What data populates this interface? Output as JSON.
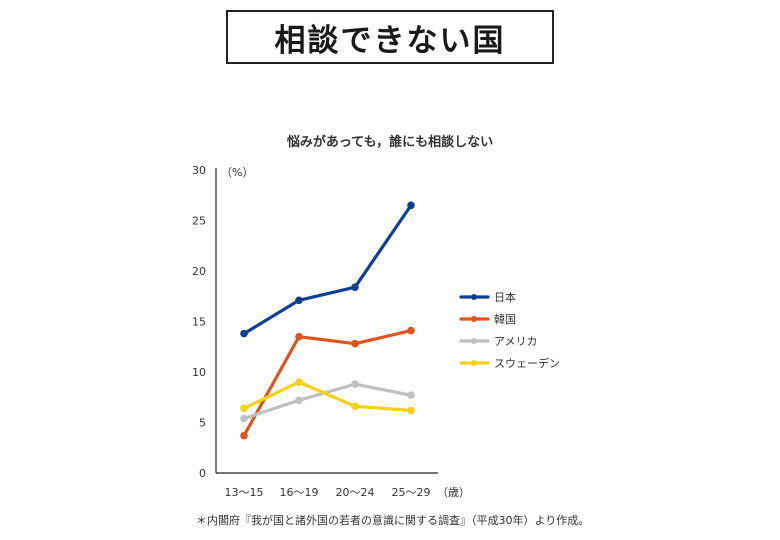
{
  "page_title": "相談できない国",
  "chart_data": {
    "type": "line",
    "title": "悩みがあっても，誰にも相談しない",
    "categories": [
      "13〜15",
      "16〜19",
      "20〜24",
      "25〜29"
    ],
    "x_unit": "（歳）",
    "y_unit": "（%）",
    "ylim": [
      0,
      30
    ],
    "yticks": [
      0,
      5,
      10,
      15,
      20,
      25,
      30
    ],
    "grid": false,
    "legend_position": "right",
    "series": [
      {
        "name": "日本",
        "color": "#0d3f94",
        "values": [
          13.8,
          17.1,
          18.4,
          26.5
        ]
      },
      {
        "name": "韓国",
        "color": "#e0541a",
        "values": [
          3.7,
          13.5,
          12.8,
          14.1
        ]
      },
      {
        "name": "アメリカ",
        "color": "#c0c0c0",
        "values": [
          5.4,
          7.2,
          8.8,
          7.7
        ]
      },
      {
        "name": "スウェーデン",
        "color": "#f7d117",
        "values": [
          6.4,
          9.0,
          6.6,
          6.2
        ]
      }
    ]
  },
  "source_note": "＊内閣府『我が国と諸外国の若者の意識に関する調査』（平成30年）より作成。"
}
